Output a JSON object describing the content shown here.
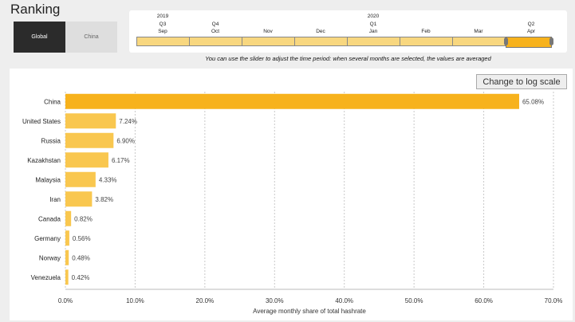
{
  "page": {
    "title": "Ranking"
  },
  "tabs": [
    {
      "label": "Global",
      "active": true
    },
    {
      "label": "China",
      "active": false
    }
  ],
  "timeline": {
    "years": [
      "2019",
      "2020"
    ],
    "quarters": [
      "Q3",
      "Q4",
      "Q1",
      "Q2"
    ],
    "months": [
      "Sep",
      "Oct",
      "Nov",
      "Dec",
      "Jan",
      "Feb",
      "Mar",
      "Apr"
    ],
    "selected_months": [
      "Apr"
    ],
    "hint": "You can use the slider to adjust the time period: when several months are selected, the values are averaged"
  },
  "log_button": {
    "label": "Change to log scale"
  },
  "colors": {
    "bar": "#f9c74f",
    "bar_top": "#f7b21c",
    "accent": "#f7b21c"
  },
  "chart_data": {
    "type": "bar",
    "orientation": "horizontal",
    "categories": [
      "China",
      "United States",
      "Russia",
      "Kazakhstan",
      "Malaysia",
      "Iran",
      "Canada",
      "Germany",
      "Norway",
      "Venezuela"
    ],
    "values": [
      65.08,
      7.24,
      6.9,
      6.17,
      4.33,
      3.82,
      0.82,
      0.56,
      0.48,
      0.42
    ],
    "value_labels": [
      "65.08%",
      "7.24%",
      "6.90%",
      "6.17%",
      "4.33%",
      "3.82%",
      "0.82%",
      "0.56%",
      "0.48%",
      "0.42%"
    ],
    "xlabel": "Average monthly share of total hashrate",
    "xlim": [
      0,
      70
    ],
    "xticks": [
      0,
      10,
      20,
      30,
      40,
      50,
      60,
      70
    ],
    "xtick_labels": [
      "0.0%",
      "10.0%",
      "20.0%",
      "30.0%",
      "40.0%",
      "50.0%",
      "60.0%",
      "70.0%"
    ],
    "grid": true,
    "log_scale": false
  }
}
